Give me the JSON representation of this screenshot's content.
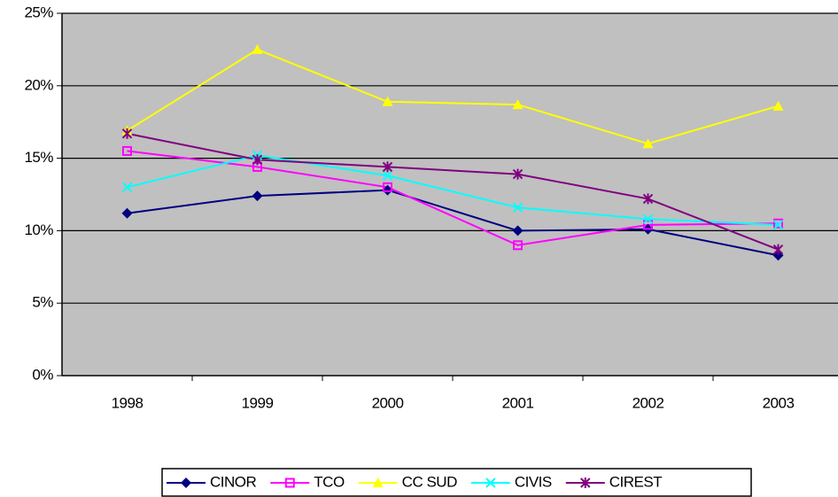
{
  "chart_data": {
    "type": "line",
    "categories": [
      "1998",
      "1999",
      "2000",
      "2001",
      "2002",
      "2003"
    ],
    "series": [
      {
        "name": "CINOR",
        "color": "#000080",
        "marker": "diamond",
        "values": [
          11.2,
          12.4,
          12.8,
          10.0,
          10.1,
          8.3
        ]
      },
      {
        "name": "TCO",
        "color": "#ff00ff",
        "marker": "square",
        "values": [
          15.5,
          14.4,
          13.0,
          9.0,
          10.4,
          10.5
        ]
      },
      {
        "name": "CC SUD",
        "color": "#ffff00",
        "marker": "triangle",
        "values": [
          16.9,
          22.5,
          18.9,
          18.7,
          16.0,
          18.6
        ]
      },
      {
        "name": "CIVIS",
        "color": "#00ffff",
        "marker": "x",
        "values": [
          13.0,
          15.2,
          13.8,
          11.6,
          10.8,
          10.4
        ]
      },
      {
        "name": "CIREST",
        "color": "#800080",
        "marker": "asterisk",
        "values": [
          16.7,
          14.9,
          14.4,
          13.9,
          12.2,
          8.7
        ]
      }
    ],
    "ylim": [
      0,
      25
    ],
    "yticks": [
      {
        "value": 0,
        "label": "0%"
      },
      {
        "value": 5,
        "label": "5%"
      },
      {
        "value": 10,
        "label": "10%"
      },
      {
        "value": 15,
        "label": "15%"
      },
      {
        "value": 20,
        "label": "20%"
      },
      {
        "value": 25,
        "label": "25%"
      }
    ],
    "grid": true,
    "legend": "bottom"
  }
}
